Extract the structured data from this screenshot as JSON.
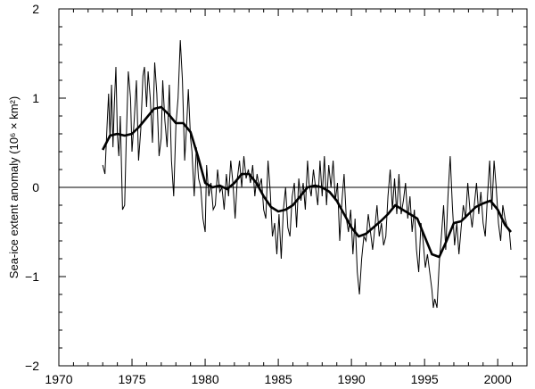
{
  "chart_data": {
    "type": "line",
    "title": "",
    "xlabel": "",
    "ylabel": "Sea-ice extent anomaly (10⁶ × km²)",
    "xlim": [
      1970,
      2002
    ],
    "ylim": [
      -2,
      2
    ],
    "xticks": [
      1970,
      1975,
      1980,
      1985,
      1990,
      1995,
      2000
    ],
    "yticks": [
      -2,
      -1,
      0,
      1,
      2
    ],
    "xtick_labels": [
      "1970",
      "1975",
      "1980",
      "1985",
      "1990",
      "1995",
      "2000"
    ],
    "ytick_labels": [
      "−2",
      "−1",
      "0",
      "1",
      "2"
    ],
    "zero_reference_line": 0,
    "grid": false,
    "series": [
      {
        "style": "thin",
        "points": [
          [
            1973.0,
            0.25
          ],
          [
            1973.15,
            0.15
          ],
          [
            1973.3,
            0.7
          ],
          [
            1973.4,
            1.05
          ],
          [
            1973.5,
            0.55
          ],
          [
            1973.6,
            1.15
          ],
          [
            1973.7,
            0.45
          ],
          [
            1973.8,
            0.95
          ],
          [
            1973.9,
            1.35
          ],
          [
            1974.0,
            0.6
          ],
          [
            1974.1,
            0.35
          ],
          [
            1974.2,
            0.8
          ],
          [
            1974.35,
            -0.25
          ],
          [
            1974.5,
            -0.2
          ],
          [
            1974.6,
            0.5
          ],
          [
            1974.75,
            1.3
          ],
          [
            1974.9,
            1.0
          ],
          [
            1975.0,
            0.4
          ],
          [
            1975.15,
            0.75
          ],
          [
            1975.3,
            1.2
          ],
          [
            1975.45,
            0.3
          ],
          [
            1975.6,
            0.65
          ],
          [
            1975.75,
            1.25
          ],
          [
            1975.85,
            1.35
          ],
          [
            1976.0,
            0.9
          ],
          [
            1976.1,
            1.3
          ],
          [
            1976.25,
            1.0
          ],
          [
            1976.4,
            0.5
          ],
          [
            1976.55,
            1.4
          ],
          [
            1976.7,
            1.05
          ],
          [
            1976.85,
            0.35
          ],
          [
            1977.0,
            0.55
          ],
          [
            1977.1,
            1.2
          ],
          [
            1977.25,
            0.75
          ],
          [
            1977.4,
            0.45
          ],
          [
            1977.55,
            1.15
          ],
          [
            1977.7,
            0.3
          ],
          [
            1977.85,
            -0.1
          ],
          [
            1978.0,
            0.7
          ],
          [
            1978.15,
            1.0
          ],
          [
            1978.3,
            1.65
          ],
          [
            1978.45,
            1.2
          ],
          [
            1978.6,
            0.3
          ],
          [
            1978.75,
            0.75
          ],
          [
            1978.85,
            1.1
          ],
          [
            1979.0,
            0.55
          ],
          [
            1979.1,
            0.4
          ],
          [
            1979.25,
            -0.1
          ],
          [
            1979.4,
            0.45
          ],
          [
            1979.55,
            0.1
          ],
          [
            1979.7,
            0.0
          ],
          [
            1979.85,
            -0.35
          ],
          [
            1980.0,
            -0.5
          ],
          [
            1980.1,
            0.25
          ],
          [
            1980.25,
            -0.1
          ],
          [
            1980.4,
            0.05
          ],
          [
            1980.55,
            -0.25
          ],
          [
            1980.7,
            -0.2
          ],
          [
            1980.85,
            0.2
          ],
          [
            1981.0,
            -0.05
          ],
          [
            1981.15,
            0.0
          ],
          [
            1981.3,
            -0.25
          ],
          [
            1981.45,
            0.15
          ],
          [
            1981.6,
            -0.1
          ],
          [
            1981.75,
            0.3
          ],
          [
            1981.9,
            0.05
          ],
          [
            1982.05,
            -0.35
          ],
          [
            1982.2,
            0.1
          ],
          [
            1982.35,
            0.3
          ],
          [
            1982.5,
            0.0
          ],
          [
            1982.65,
            0.35
          ],
          [
            1982.8,
            0.1
          ],
          [
            1982.95,
            0.2
          ],
          [
            1983.1,
            0.05
          ],
          [
            1983.25,
            0.25
          ],
          [
            1983.4,
            -0.1
          ],
          [
            1983.55,
            0.15
          ],
          [
            1983.7,
            0.0
          ],
          [
            1983.85,
            0.1
          ],
          [
            1984.0,
            -0.25
          ],
          [
            1984.15,
            -0.35
          ],
          [
            1984.3,
            0.3
          ],
          [
            1984.45,
            -0.05
          ],
          [
            1984.6,
            -0.55
          ],
          [
            1984.75,
            -0.4
          ],
          [
            1984.9,
            -0.75
          ],
          [
            1985.05,
            -0.3
          ],
          [
            1985.2,
            -0.8
          ],
          [
            1985.35,
            -0.25
          ],
          [
            1985.5,
            0.0
          ],
          [
            1985.65,
            -0.45
          ],
          [
            1985.8,
            -0.55
          ],
          [
            1985.95,
            -0.1
          ],
          [
            1986.1,
            0.05
          ],
          [
            1986.25,
            -0.45
          ],
          [
            1986.4,
            0.1
          ],
          [
            1986.55,
            -0.15
          ],
          [
            1986.7,
            0.05
          ],
          [
            1986.85,
            -0.25
          ],
          [
            1987.0,
            0.3
          ],
          [
            1987.1,
            0.05
          ],
          [
            1987.25,
            -0.1
          ],
          [
            1987.4,
            0.2
          ],
          [
            1987.55,
            0.0
          ],
          [
            1987.7,
            -0.2
          ],
          [
            1987.85,
            0.3
          ],
          [
            1988.0,
            -0.1
          ],
          [
            1988.15,
            0.35
          ],
          [
            1988.3,
            -0.2
          ],
          [
            1988.45,
            0.25
          ],
          [
            1988.6,
            0.0
          ],
          [
            1988.75,
            0.3
          ],
          [
            1988.9,
            -0.15
          ],
          [
            1989.05,
            0.05
          ],
          [
            1989.2,
            -0.6
          ],
          [
            1989.35,
            -0.15
          ],
          [
            1989.5,
            0.15
          ],
          [
            1989.65,
            -0.35
          ],
          [
            1989.8,
            -0.5
          ],
          [
            1989.95,
            -0.25
          ],
          [
            1990.1,
            -0.75
          ],
          [
            1990.25,
            -0.35
          ],
          [
            1990.4,
            -0.95
          ],
          [
            1990.55,
            -1.2
          ],
          [
            1990.7,
            -0.8
          ],
          [
            1990.85,
            -0.55
          ],
          [
            1991.0,
            -0.6
          ],
          [
            1991.15,
            -0.3
          ],
          [
            1991.3,
            -0.5
          ],
          [
            1991.45,
            -0.7
          ],
          [
            1991.6,
            -0.45
          ],
          [
            1991.75,
            -0.2
          ],
          [
            1991.9,
            -0.55
          ],
          [
            1992.05,
            -0.4
          ],
          [
            1992.2,
            -0.65
          ],
          [
            1992.35,
            -0.55
          ],
          [
            1992.5,
            -0.1
          ],
          [
            1992.65,
            0.2
          ],
          [
            1992.8,
            -0.25
          ],
          [
            1992.95,
            0.1
          ],
          [
            1993.1,
            -0.3
          ],
          [
            1993.25,
            0.15
          ],
          [
            1993.4,
            -0.3
          ],
          [
            1993.55,
            -0.15
          ],
          [
            1993.7,
            0.05
          ],
          [
            1993.85,
            -0.35
          ],
          [
            1994.0,
            -0.1
          ],
          [
            1994.15,
            -0.5
          ],
          [
            1994.3,
            -0.25
          ],
          [
            1994.45,
            -0.7
          ],
          [
            1994.6,
            -0.95
          ],
          [
            1994.75,
            -0.4
          ],
          [
            1994.9,
            -0.6
          ],
          [
            1995.05,
            -0.9
          ],
          [
            1995.2,
            -0.75
          ],
          [
            1995.35,
            -0.95
          ],
          [
            1995.5,
            -1.15
          ],
          [
            1995.6,
            -1.35
          ],
          [
            1995.7,
            -1.25
          ],
          [
            1995.85,
            -1.35
          ],
          [
            1996.0,
            -0.85
          ],
          [
            1996.15,
            -0.55
          ],
          [
            1996.3,
            -0.2
          ],
          [
            1996.45,
            -0.7
          ],
          [
            1996.6,
            -0.1
          ],
          [
            1996.75,
            0.35
          ],
          [
            1996.9,
            -0.2
          ],
          [
            1997.05,
            -0.65
          ],
          [
            1997.2,
            -0.4
          ],
          [
            1997.35,
            -0.75
          ],
          [
            1997.5,
            -0.45
          ],
          [
            1997.65,
            -0.2
          ],
          [
            1997.8,
            -0.35
          ],
          [
            1997.95,
            0.05
          ],
          [
            1998.1,
            -0.25
          ],
          [
            1998.25,
            -0.45
          ],
          [
            1998.4,
            -0.2
          ],
          [
            1998.55,
            0.05
          ],
          [
            1998.7,
            -0.3
          ],
          [
            1998.85,
            -0.05
          ],
          [
            1999.0,
            -0.4
          ],
          [
            1999.15,
            -0.55
          ],
          [
            1999.3,
            -0.1
          ],
          [
            1999.45,
            0.3
          ],
          [
            1999.6,
            -0.25
          ],
          [
            1999.75,
            0.3
          ],
          [
            1999.9,
            0.0
          ],
          [
            2000.05,
            -0.4
          ],
          [
            2000.2,
            -0.6
          ],
          [
            2000.35,
            -0.2
          ],
          [
            2000.5,
            -0.35
          ],
          [
            2000.65,
            -0.45
          ],
          [
            2000.8,
            -0.5
          ],
          [
            2000.9,
            -0.7
          ]
        ]
      },
      {
        "style": "thick",
        "points": [
          [
            1973.0,
            0.42
          ],
          [
            1973.5,
            0.58
          ],
          [
            1974.0,
            0.6
          ],
          [
            1974.5,
            0.58
          ],
          [
            1975.0,
            0.6
          ],
          [
            1975.5,
            0.68
          ],
          [
            1976.0,
            0.78
          ],
          [
            1976.5,
            0.88
          ],
          [
            1977.0,
            0.9
          ],
          [
            1977.5,
            0.82
          ],
          [
            1978.0,
            0.72
          ],
          [
            1978.5,
            0.72
          ],
          [
            1979.0,
            0.62
          ],
          [
            1979.5,
            0.35
          ],
          [
            1980.0,
            0.05
          ],
          [
            1980.5,
            0.0
          ],
          [
            1981.0,
            0.02
          ],
          [
            1981.5,
            -0.02
          ],
          [
            1982.0,
            0.05
          ],
          [
            1982.5,
            0.15
          ],
          [
            1983.0,
            0.15
          ],
          [
            1983.5,
            0.05
          ],
          [
            1984.0,
            -0.1
          ],
          [
            1984.5,
            -0.22
          ],
          [
            1985.0,
            -0.27
          ],
          [
            1985.5,
            -0.25
          ],
          [
            1986.0,
            -0.2
          ],
          [
            1986.5,
            -0.1
          ],
          [
            1987.0,
            0.0
          ],
          [
            1987.5,
            0.02
          ],
          [
            1988.0,
            0.0
          ],
          [
            1988.5,
            -0.05
          ],
          [
            1989.0,
            -0.15
          ],
          [
            1989.5,
            -0.3
          ],
          [
            1990.0,
            -0.45
          ],
          [
            1990.5,
            -0.55
          ],
          [
            1991.0,
            -0.52
          ],
          [
            1991.5,
            -0.45
          ],
          [
            1992.0,
            -0.38
          ],
          [
            1992.5,
            -0.3
          ],
          [
            1993.0,
            -0.2
          ],
          [
            1993.5,
            -0.25
          ],
          [
            1994.0,
            -0.3
          ],
          [
            1994.5,
            -0.35
          ],
          [
            1995.0,
            -0.55
          ],
          [
            1995.5,
            -0.75
          ],
          [
            1996.0,
            -0.78
          ],
          [
            1996.5,
            -0.6
          ],
          [
            1997.0,
            -0.4
          ],
          [
            1997.5,
            -0.38
          ],
          [
            1998.0,
            -0.3
          ],
          [
            1998.5,
            -0.22
          ],
          [
            1999.0,
            -0.18
          ],
          [
            1999.5,
            -0.15
          ],
          [
            2000.0,
            -0.25
          ],
          [
            2000.5,
            -0.42
          ],
          [
            2000.9,
            -0.5
          ]
        ]
      }
    ]
  }
}
